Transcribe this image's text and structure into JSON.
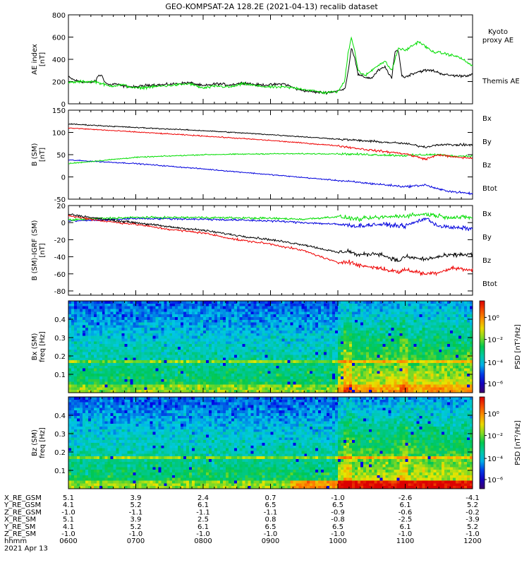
{
  "title": "GEO-KOMPSAT-2A 128.2E (2021-04-13) recalib dataset",
  "colors": {
    "black": "#000000",
    "green": "#00dd00",
    "red": "#ee0000",
    "blue": "#0000dd"
  },
  "chart_data": [
    {
      "type": "line",
      "panel": "ae",
      "ylabel_lines": [
        "AE index",
        "[nT]"
      ],
      "ylim": [
        0,
        800
      ],
      "yticks": [
        0,
        200,
        400,
        600,
        800
      ],
      "xlim": [
        6,
        12
      ],
      "series": [
        {
          "name": "Themis AE",
          "color": "#000000",
          "x": [
            6.0,
            6.1,
            6.2,
            6.3,
            6.4,
            6.45,
            6.5,
            6.55,
            6.6,
            6.7,
            6.8,
            7.0,
            7.2,
            7.4,
            7.6,
            7.8,
            8.0,
            8.2,
            8.4,
            8.6,
            8.8,
            9.0,
            9.2,
            9.4,
            9.6,
            9.8,
            9.95,
            10.1,
            10.15,
            10.2,
            10.25,
            10.3,
            10.4,
            10.5,
            10.6,
            10.7,
            10.8,
            10.85,
            10.9,
            10.95,
            11.0,
            11.1,
            11.2,
            11.3,
            11.4,
            11.6,
            11.8,
            12.0
          ],
          "y": [
            240,
            210,
            200,
            190,
            200,
            260,
            250,
            190,
            170,
            180,
            160,
            150,
            170,
            170,
            180,
            190,
            160,
            180,
            170,
            190,
            170,
            170,
            180,
            130,
            110,
            100,
            110,
            130,
            280,
            500,
            420,
            260,
            240,
            230,
            300,
            330,
            230,
            470,
            480,
            250,
            240,
            270,
            290,
            300,
            300,
            260,
            250,
            260
          ]
        },
        {
          "name": "Kyoto proxy AE",
          "color": "#00dd00",
          "x": [
            6.0,
            6.2,
            6.4,
            6.6,
            6.8,
            7.0,
            7.2,
            7.4,
            7.6,
            7.8,
            8.0,
            8.2,
            8.4,
            8.6,
            8.8,
            9.0,
            9.2,
            9.4,
            9.6,
            9.8,
            10.0,
            10.1,
            10.15,
            10.2,
            10.25,
            10.3,
            10.4,
            10.6,
            10.7,
            10.8,
            10.9,
            11.0,
            11.2,
            11.4,
            11.6,
            11.8,
            12.0
          ],
          "y": [
            190,
            200,
            200,
            160,
            170,
            140,
            150,
            160,
            170,
            180,
            140,
            160,
            150,
            180,
            160,
            150,
            150,
            140,
            120,
            100,
            110,
            200,
            450,
            600,
            480,
            300,
            250,
            350,
            380,
            300,
            500,
            480,
            560,
            470,
            450,
            420,
            340
          ]
        }
      ]
    },
    {
      "type": "line",
      "panel": "b_sm",
      "ylabel_lines": [
        "B (SM)",
        "[nT]"
      ],
      "ylim": [
        -50,
        150
      ],
      "yticks": [
        -50,
        0,
        50,
        100,
        150
      ],
      "xlim": [
        6,
        12
      ],
      "series": [
        {
          "name": "Bx",
          "color": "#0000dd",
          "x": [
            6.0,
            7.0,
            8.0,
            9.0,
            10.0,
            10.5,
            11.0,
            11.3,
            11.5,
            11.7,
            12.0
          ],
          "y": [
            38,
            30,
            18,
            5,
            -8,
            -15,
            -22,
            -18,
            -28,
            -33,
            -38
          ]
        },
        {
          "name": "By",
          "color": "#00dd00",
          "x": [
            6.0,
            7.0,
            8.0,
            9.0,
            10.0,
            10.5,
            11.0,
            11.3,
            11.5,
            11.7,
            12.0
          ],
          "y": [
            30,
            44,
            50,
            52,
            52,
            50,
            48,
            50,
            50,
            47,
            47
          ]
        },
        {
          "name": "Bz",
          "color": "#ee0000",
          "x": [
            6.0,
            7.0,
            8.0,
            9.0,
            10.0,
            10.5,
            11.0,
            11.3,
            11.5,
            11.7,
            12.0
          ],
          "y": [
            110,
            101,
            92,
            82,
            70,
            60,
            52,
            40,
            50,
            45,
            42
          ]
        },
        {
          "name": "Btot",
          "color": "#000000",
          "x": [
            6.0,
            7.0,
            8.0,
            9.0,
            10.0,
            10.5,
            11.0,
            11.3,
            11.5,
            11.7,
            12.0
          ],
          "y": [
            119,
            111,
            104,
            95,
            85,
            80,
            75,
            67,
            73,
            72,
            72
          ]
        }
      ]
    },
    {
      "type": "line",
      "panel": "b_minus_igrf",
      "ylabel_lines": [
        "B (SM)-IGRF (SM)",
        "[nT]"
      ],
      "ylim": [
        -85,
        20
      ],
      "yticks": [
        -80,
        -60,
        -40,
        -20,
        0,
        20
      ],
      "xlim": [
        6,
        12
      ],
      "series": [
        {
          "name": "Bx",
          "color": "#0000dd",
          "x": [
            6.0,
            6.5,
            7.0,
            8.0,
            9.0,
            9.5,
            10.0,
            10.3,
            10.6,
            11.0,
            11.3,
            11.5,
            11.7,
            12.0
          ],
          "y": [
            2,
            3,
            5,
            4,
            2,
            0,
            -2,
            -4,
            -2,
            -4,
            5,
            -4,
            -6,
            -7
          ]
        },
        {
          "name": "By",
          "color": "#00dd00",
          "x": [
            6.0,
            6.5,
            7.0,
            8.0,
            9.0,
            9.5,
            10.0,
            10.3,
            10.6,
            11.0,
            11.3,
            11.5,
            11.7,
            12.0
          ],
          "y": [
            3,
            5,
            6,
            6,
            5,
            4,
            7,
            4,
            6,
            8,
            10,
            8,
            6,
            6
          ]
        },
        {
          "name": "Bz",
          "color": "#ee0000",
          "x": [
            6.0,
            6.5,
            7.0,
            7.5,
            8.0,
            8.5,
            9.0,
            9.5,
            10.0,
            10.15,
            10.3,
            10.6,
            10.9,
            11.0,
            11.3,
            11.5,
            11.7,
            12.0
          ],
          "y": [
            8,
            2,
            -2,
            -8,
            -12,
            -20,
            -25,
            -33,
            -47,
            -45,
            -50,
            -53,
            -58,
            -55,
            -60,
            -58,
            -53,
            -56
          ]
        },
        {
          "name": "Btot",
          "color": "#000000",
          "x": [
            6.0,
            6.5,
            7.0,
            7.5,
            8.0,
            8.5,
            9.0,
            9.5,
            10.0,
            10.15,
            10.3,
            10.6,
            10.9,
            11.0,
            11.3,
            11.5,
            11.7,
            12.0
          ],
          "y": [
            10,
            4,
            0,
            -5,
            -9,
            -15,
            -20,
            -26,
            -35,
            -33,
            -38,
            -36,
            -45,
            -40,
            -43,
            -40,
            -38,
            -37
          ]
        }
      ]
    },
    {
      "type": "heatmap",
      "panel": "bx_psd",
      "ylabel_lines": [
        "Bx (SM)",
        "freq [Hz]"
      ],
      "yticks": [
        0.1,
        0.2,
        0.3,
        0.4
      ],
      "ylim": [
        0,
        0.5
      ],
      "colorbar_label": "PSD [nT²/Hz]",
      "colorbar_ticks": [
        "10⁰",
        "10⁻²",
        "10⁻⁴",
        "10⁻⁶"
      ],
      "features": "persistent line near 0.17 Hz; enhanced power at all frequencies after 10:00 UT"
    },
    {
      "type": "heatmap",
      "panel": "bz_psd",
      "ylabel_lines": [
        "Bz (SM)",
        "freq [Hz]"
      ],
      "yticks": [
        0.1,
        0.2,
        0.3,
        0.4
      ],
      "ylim": [
        0,
        0.5
      ],
      "colorbar_label": "PSD [nT²/Hz]",
      "colorbar_ticks": [
        "10⁰",
        "10⁻²",
        "10⁻⁴",
        "10⁻⁶"
      ],
      "features": "persistent line near 0.17 Hz; strong low-frequency power after 10:00 UT"
    }
  ],
  "ephemeris": {
    "rows": [
      {
        "label": "X_RE_GSM",
        "values": [
          "5.1",
          "3.9",
          "2.4",
          "0.7",
          "-1.0",
          "-2.6",
          "-4.1"
        ]
      },
      {
        "label": "Y_RE_GSM",
        "values": [
          "4.1",
          "5.2",
          "6.1",
          "6.5",
          "6.5",
          "6.1",
          "5.2"
        ]
      },
      {
        "label": "Z_RE_GSM",
        "values": [
          "-1.0",
          "-1.1",
          "-1.1",
          "-1.1",
          "-0.9",
          "-0.6",
          "-0.2"
        ]
      },
      {
        "label": "X_RE_SM",
        "values": [
          "5.1",
          "3.9",
          "2.5",
          "0.8",
          "-0.8",
          "-2.5",
          "-3.9"
        ]
      },
      {
        "label": "Y_RE_SM",
        "values": [
          "4.1",
          "5.2",
          "6.1",
          "6.5",
          "6.5",
          "6.1",
          "5.2"
        ]
      },
      {
        "label": "Z_RE_SM",
        "values": [
          "-1.0",
          "-1.0",
          "-1.0",
          "-1.0",
          "-1.0",
          "-1.0",
          "-1.0"
        ]
      },
      {
        "label": "hhmm",
        "values": [
          "0600",
          "0700",
          "0800",
          "0900",
          "1000",
          "1100",
          "1200"
        ]
      }
    ],
    "date": "2021 Apr 13"
  }
}
